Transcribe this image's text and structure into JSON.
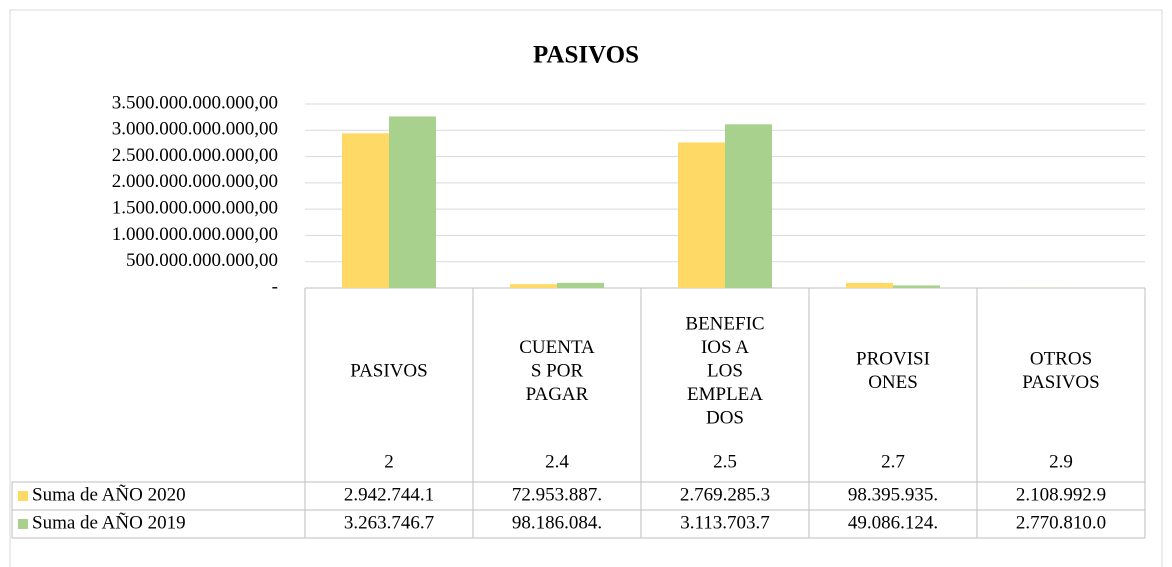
{
  "chart_data": {
    "type": "bar",
    "title": "PASIVOS",
    "category_names": [
      [
        "PASIVOS"
      ],
      [
        "CUENTA",
        "S POR",
        "PAGAR"
      ],
      [
        "BENEFIC",
        "IOS A",
        "LOS",
        "EMPLEA",
        "DOS"
      ],
      [
        "PROVISI",
        "ONES"
      ],
      [
        "OTROS",
        "PASIVOS"
      ]
    ],
    "categories": [
      "2",
      "2.4",
      "2.5",
      "2.7",
      "2.9"
    ],
    "series": [
      {
        "name": "Suma de AÑO 2020",
        "color": "#ffd966",
        "values": [
          2942744100000,
          72953887000,
          2769285300000,
          98395935000,
          2108992900
        ],
        "value_labels": [
          "2.942.744.1",
          "72.953.887.",
          "2.769.285.3",
          "98.395.935.",
          "2.108.992.9"
        ]
      },
      {
        "name": "Suma de AÑO 2019",
        "color": "#a9d18e",
        "values": [
          3263746700000,
          98186084000,
          3113703700000,
          49086124000,
          2770810000
        ],
        "value_labels": [
          "3.263.746.7",
          "98.186.084.",
          "3.113.703.7",
          "49.086.124.",
          "2.770.810.0"
        ]
      }
    ],
    "ylim": [
      0,
      3500000000000
    ],
    "yticks": [
      {
        "value": 0,
        "label": "-"
      },
      {
        "value": 500000000000,
        "label": "500.000.000.000,00"
      },
      {
        "value": 1000000000000,
        "label": "1.000.000.000.000,00"
      },
      {
        "value": 1500000000000,
        "label": "1.500.000.000.000,00"
      },
      {
        "value": 2000000000000,
        "label": "2.000.000.000.000,00"
      },
      {
        "value": 2500000000000,
        "label": "2.500.000.000.000,00"
      },
      {
        "value": 3000000000000,
        "label": "3.000.000.000.000,00"
      },
      {
        "value": 3500000000000,
        "label": "3.500.000.000.000,00"
      }
    ],
    "grid": true
  }
}
